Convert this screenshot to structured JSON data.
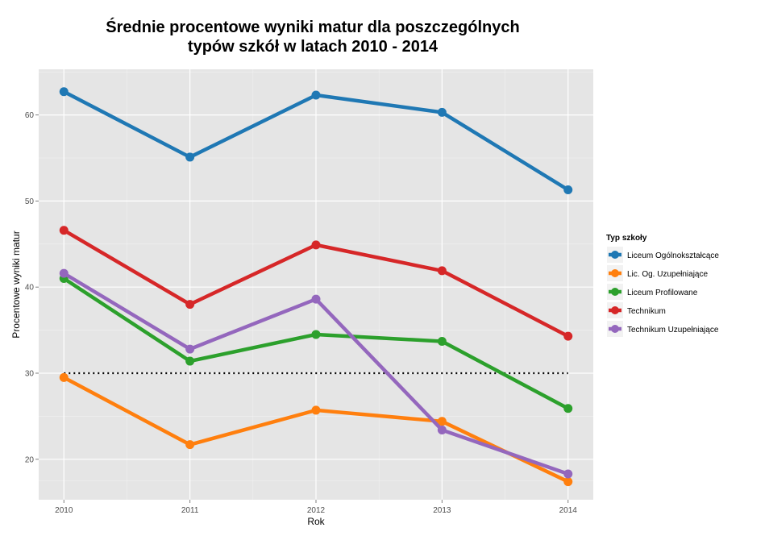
{
  "chart_data": {
    "type": "line",
    "title_lines": [
      "Średnie procentowe wyniki matur dla poszczególnych",
      "typów szkół w latach 2010 - 2014"
    ],
    "xlabel": "Rok",
    "ylabel": "Procentowe wyniki matur",
    "categories": [
      "2010",
      "2011",
      "2012",
      "2013",
      "2014"
    ],
    "x": [
      2010,
      2011,
      2012,
      2013,
      2014
    ],
    "xlim": [
      2009.8,
      2014.2
    ],
    "ylim": [
      15.3,
      65.3
    ],
    "y_ticks": [
      20,
      30,
      40,
      50,
      60
    ],
    "y_tick_labels": [
      "20",
      "30",
      "40",
      "50",
      "60"
    ],
    "grid": true,
    "reference_line": {
      "y": 30,
      "style": "dotted",
      "color": "#000000"
    },
    "legend": {
      "title": "Typ szkoły",
      "position": "right"
    },
    "series": [
      {
        "name": "Liceum Ogólnokształcące",
        "color": "#1F78B4",
        "values": [
          62.7,
          55.1,
          62.3,
          60.3,
          51.3
        ]
      },
      {
        "name": "Lic. Og. Uzupełniające",
        "color": "#FF7F0E",
        "values": [
          29.5,
          21.7,
          25.7,
          24.4,
          17.4
        ]
      },
      {
        "name": "Liceum Profilowane",
        "color": "#2CA02C",
        "values": [
          41.0,
          31.4,
          34.5,
          33.7,
          25.9
        ]
      },
      {
        "name": "Technikum",
        "color": "#D62728",
        "values": [
          46.6,
          38.0,
          44.9,
          41.9,
          34.3
        ]
      },
      {
        "name": "Technikum Uzupełniające",
        "color": "#9467BD",
        "values": [
          41.6,
          32.8,
          38.6,
          23.4,
          18.3
        ]
      }
    ]
  }
}
